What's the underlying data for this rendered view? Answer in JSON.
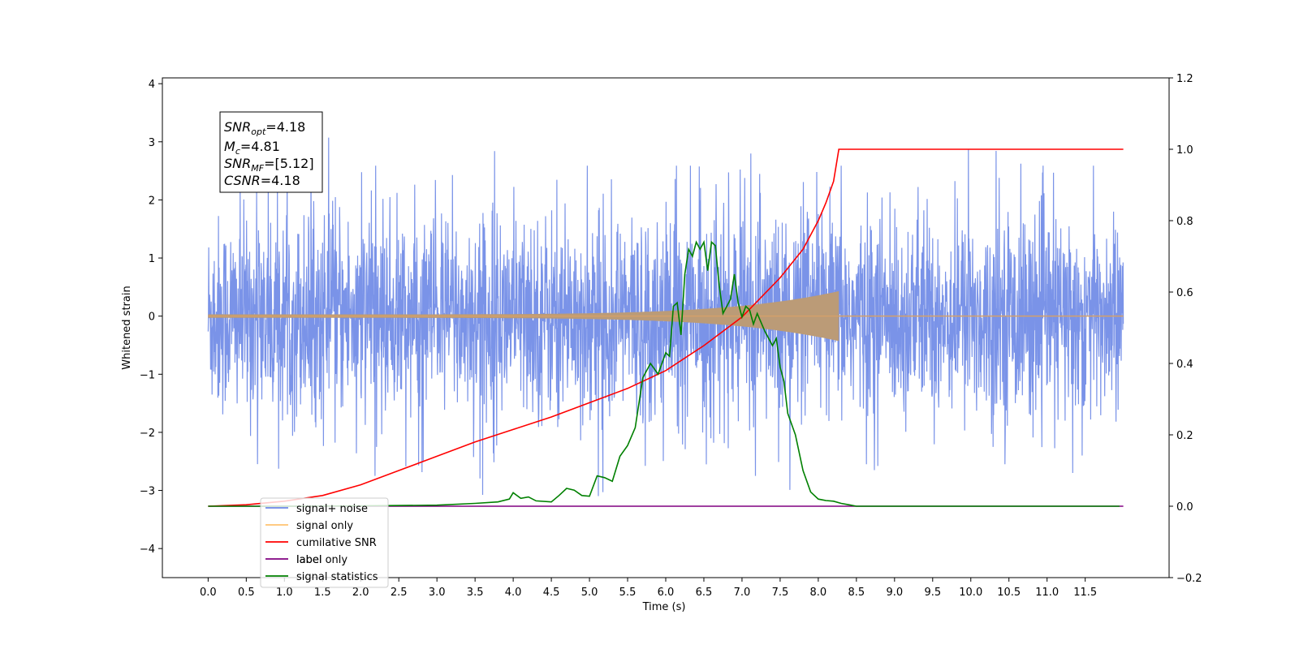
{
  "chart_data": {
    "type": "line",
    "xlabel": "Time (s)",
    "ylabel": "Whitened strain",
    "ylim": [
      -4.5,
      4.1
    ],
    "y2lim": [
      -0.2,
      1.2
    ],
    "xlim": [
      -0.6,
      12.6
    ],
    "x_ticks": [
      "0.0",
      "0.5",
      "1.0",
      "1.5",
      "2.0",
      "2.5",
      "3.0",
      "3.5",
      "4.0",
      "4.5",
      "5.0",
      "5.5",
      "6.0",
      "6.5",
      "7.0",
      "7.5",
      "8.0",
      "8.5",
      "9.0",
      "9.5",
      "10.0",
      "10.5",
      "11.0",
      "11.5"
    ],
    "y_ticks": [
      "4",
      "3",
      "2",
      "1",
      "0",
      "−1",
      "−2",
      "−3",
      "−4"
    ],
    "y2_ticks": [
      "1.2",
      "1.0",
      "0.8",
      "0.6",
      "0.4",
      "0.2",
      "0.0",
      "−0.2"
    ],
    "grid": false,
    "legend_position": "lower-left",
    "annotation": {
      "snr_opt": "4.18",
      "mc": "4.81",
      "snr_mf": "[5.12]",
      "csnr": "4.18"
    },
    "series": [
      {
        "name": "signal+ noise",
        "color": "#6b87e6",
        "axis": "left",
        "kind": "noise",
        "x_range": [
          0.0,
          12.0
        ],
        "amplitude_range": [
          -3.4,
          3.7
        ],
        "typical_envelope": 1.6
      },
      {
        "name": "signal only",
        "color": "#ffa500",
        "axis": "left",
        "kind": "chirp",
        "x_range": [
          0.0,
          8.27
        ],
        "x_after_range": [
          8.27,
          12.0
        ],
        "peak_amplitude": 0.4
      },
      {
        "name": "cumilative SNR",
        "color": "#ff0000",
        "axis": "right",
        "x": [
          0.0,
          0.5,
          1.0,
          1.5,
          2.0,
          2.5,
          3.0,
          3.5,
          4.0,
          4.5,
          5.0,
          5.5,
          6.0,
          6.5,
          7.0,
          7.5,
          7.8,
          8.0,
          8.1,
          8.2,
          8.27,
          9.0,
          10.0,
          11.0,
          12.0
        ],
        "values": [
          0.0,
          0.004,
          0.014,
          0.03,
          0.06,
          0.1,
          0.14,
          0.18,
          0.215,
          0.25,
          0.29,
          0.33,
          0.38,
          0.45,
          0.53,
          0.64,
          0.72,
          0.8,
          0.85,
          0.91,
          1.0,
          1.0,
          1.0,
          1.0,
          1.0
        ]
      },
      {
        "name": "label",
        "color": "#800080",
        "axis": "right",
        "x": [
          0.0,
          12.0
        ],
        "values": [
          0.0,
          0.0
        ]
      },
      {
        "name": "label only",
        "color": "#ffffff",
        "axis": "right",
        "x": [
          0.0,
          12.0
        ],
        "values": [
          0.0,
          0.0
        ]
      },
      {
        "name": "signal statistics",
        "color": "#008000",
        "axis": "right",
        "x": [
          0.0,
          1.0,
          2.0,
          3.0,
          3.5,
          3.8,
          3.95,
          4.0,
          4.1,
          4.2,
          4.3,
          4.5,
          4.6,
          4.7,
          4.8,
          4.9,
          5.0,
          5.1,
          5.2,
          5.3,
          5.4,
          5.5,
          5.6,
          5.7,
          5.8,
          5.9,
          6.0,
          6.05,
          6.1,
          6.15,
          6.2,
          6.25,
          6.3,
          6.35,
          6.4,
          6.45,
          6.5,
          6.55,
          6.6,
          6.65,
          6.7,
          6.75,
          6.8,
          6.85,
          6.9,
          6.95,
          7.0,
          7.05,
          7.1,
          7.15,
          7.2,
          7.3,
          7.4,
          7.45,
          7.5,
          7.55,
          7.6,
          7.7,
          7.8,
          7.9,
          8.0,
          8.1,
          8.2,
          8.3,
          8.4,
          8.5,
          9.0,
          10.0,
          11.0,
          11.95
        ],
        "values": [
          0.0,
          0.0,
          0.001,
          0.003,
          0.008,
          0.012,
          0.02,
          0.038,
          0.022,
          0.026,
          0.015,
          0.012,
          0.03,
          0.05,
          0.045,
          0.03,
          0.028,
          0.085,
          0.08,
          0.07,
          0.14,
          0.17,
          0.22,
          0.36,
          0.4,
          0.37,
          0.43,
          0.42,
          0.56,
          0.57,
          0.48,
          0.65,
          0.72,
          0.7,
          0.74,
          0.72,
          0.74,
          0.66,
          0.74,
          0.73,
          0.62,
          0.54,
          0.56,
          0.58,
          0.65,
          0.57,
          0.53,
          0.56,
          0.55,
          0.51,
          0.54,
          0.49,
          0.45,
          0.47,
          0.39,
          0.35,
          0.26,
          0.2,
          0.1,
          0.04,
          0.02,
          0.016,
          0.014,
          0.008,
          0.004,
          0.0,
          0.0,
          0.0,
          0.0,
          0.0
        ]
      }
    ]
  }
}
